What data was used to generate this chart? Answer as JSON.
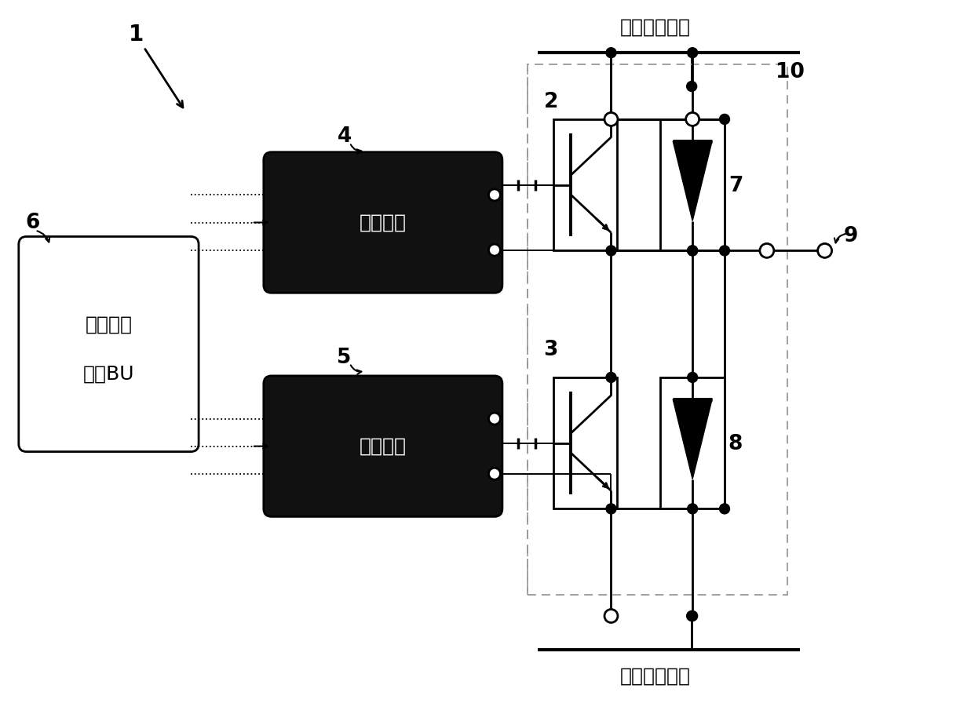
{
  "bg_color": "#ffffff",
  "fig_width": 12.14,
  "fig_height": 9.01,
  "dpi": 100,
  "labels": {
    "top_power": "高电位侧电源",
    "bottom_power": "低电位侧电源",
    "upper_drive": "驱动电路",
    "lower_drive": "驱动电路",
    "control_line1": "上级控制",
    "control_line2": "电路BU",
    "num_1": "1",
    "num_2": "2",
    "num_3": "3",
    "num_4": "4",
    "num_5": "5",
    "num_6": "6",
    "num_7": "7",
    "num_8": "8",
    "num_9": "9",
    "num_10": "10"
  },
  "colors": {
    "black": "#000000",
    "white": "#ffffff",
    "dark_fill": "#1a1a1a",
    "dashed_box": "#888888"
  },
  "lw_main": 2.0,
  "lw_thick": 3.0,
  "lw_thin": 1.4,
  "font_cn": 18,
  "font_num": 17
}
